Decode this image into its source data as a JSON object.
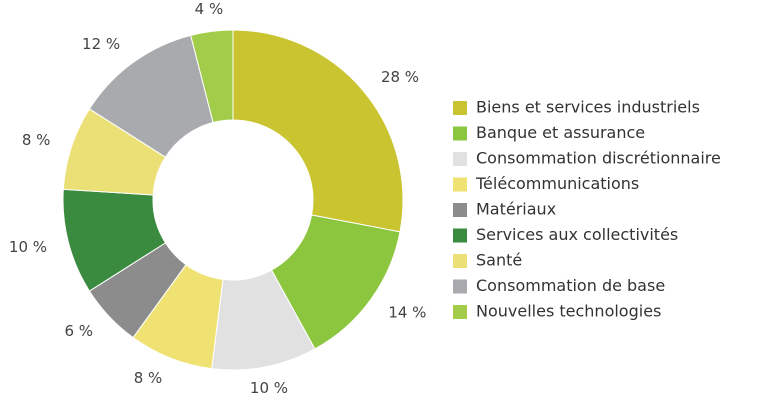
{
  "chart_data": {
    "type": "donut",
    "categories": [
      "Biens et services industriels",
      "Banque et assurance",
      "Consommation discrétionnaire",
      "Télécommunications",
      "Matériaux",
      "Services aux collectivités",
      "Santé",
      "Consommation de base",
      "Nouvelles technologies"
    ],
    "values": [
      28,
      14,
      10,
      8,
      6,
      10,
      8,
      12,
      4
    ],
    "value_labels": [
      "28 %",
      "14 %",
      "10 %",
      "8 %",
      "6 %",
      "10 %",
      "8 %",
      "12 %",
      "4 %"
    ],
    "colors": [
      "#c9c42f",
      "#8cc63e",
      "#e1e1e1",
      "#efe172",
      "#8c8c8c",
      "#3a8a3f",
      "#ebe076",
      "#a8aaad",
      "#a2cd4a"
    ],
    "legend": "right"
  }
}
